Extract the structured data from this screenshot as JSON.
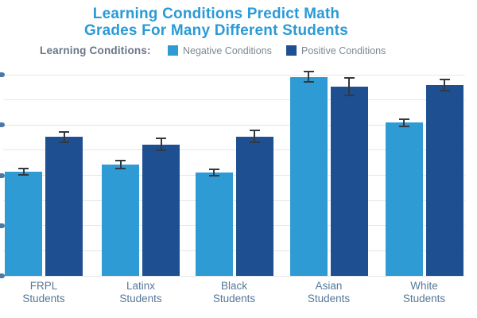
{
  "title": {
    "line1": "Learning Conditions Predict Math",
    "line2": "Grades For Many Different Students"
  },
  "legend": {
    "label": "Learning Conditions:"
  },
  "colors": {
    "title_blue": "#2a9ad6",
    "negative_bar": "#2e9bd5",
    "positive_bar": "#1d4f91",
    "gridline": "#e3e6e9",
    "error_bar": "#34393f",
    "category_label": "#56779b",
    "legend_label": "#6a7686",
    "legend_item_text": "#7e8894"
  },
  "chart_data": {
    "type": "bar",
    "title": "Learning Conditions Predict Math Grades For Many Different Students",
    "legend_position": "top",
    "grid": true,
    "categories": [
      [
        "FRPL",
        "Students"
      ],
      [
        "Latinx",
        "Students"
      ],
      [
        "Black",
        "Students"
      ],
      [
        "Asian",
        "Students"
      ],
      [
        "White",
        "Students"
      ]
    ],
    "series": [
      {
        "name": "Negative Conditions",
        "color": "#2e9bd5",
        "values": [
          51.8,
          55.4,
          51.5,
          99.0,
          76.2
        ],
        "errors": [
          1.6,
          1.9,
          1.6,
          2.4,
          1.8
        ]
      },
      {
        "name": "Positive Conditions",
        "color": "#1d4f91",
        "values": [
          69.0,
          65.4,
          69.3,
          94.1,
          94.9
        ],
        "errors": [
          2.6,
          2.8,
          3.0,
          4.4,
          2.8
        ]
      }
    ],
    "error_bars": true,
    "xlabel": "",
    "ylabel": "",
    "ylim": [
      0,
      100
    ],
    "y_units": "percent of visible axis height (y-axis tick labels cropped off left edge of image)",
    "y_major_tick_every": 25,
    "y_minor_gridline_every": 12.5,
    "y_tick_labels_cropped": true
  }
}
